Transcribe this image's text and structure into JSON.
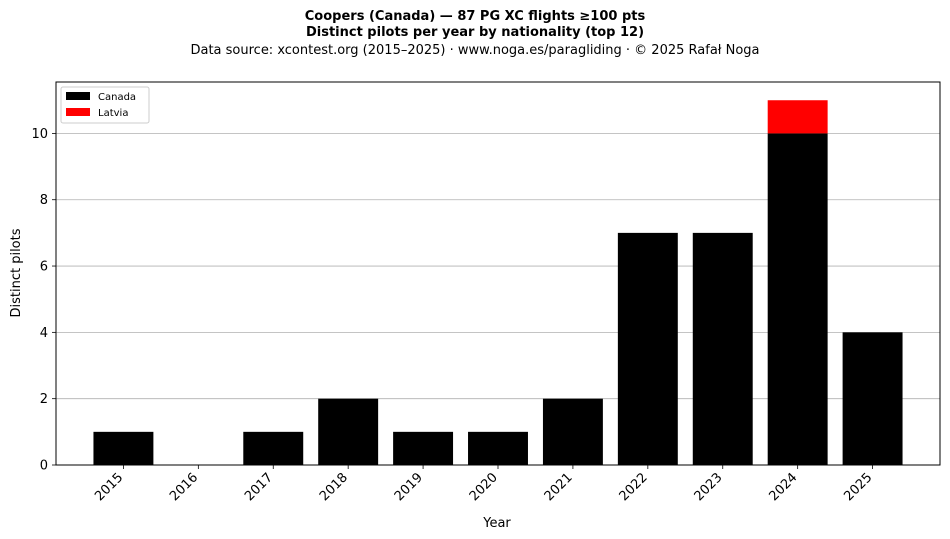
{
  "chart_data": {
    "type": "bar",
    "stacked": true,
    "title": "Coopers (Canada)  —  87 PG XC flights ≥100 pts",
    "subtitle": "Distinct pilots per year by nationality (top 12)",
    "source_line": "Data source: xcontest.org (2015–2025)  ·  www.noga.es/paragliding  ·  © 2025 Rafał Noga",
    "xlabel": "Year",
    "ylabel": "Distinct pilots",
    "categories": [
      "2015",
      "2016",
      "2017",
      "2018",
      "2019",
      "2020",
      "2021",
      "2022",
      "2023",
      "2024",
      "2025"
    ],
    "series": [
      {
        "name": "Canada",
        "color": "#000000",
        "values": [
          1,
          0,
          1,
          2,
          1,
          1,
          2,
          7,
          7,
          10,
          4
        ]
      },
      {
        "name": "Latvia",
        "color": "#ff0000",
        "values": [
          0,
          0,
          0,
          0,
          0,
          0,
          0,
          0,
          0,
          1,
          0
        ]
      }
    ],
    "ylim": [
      0,
      11.55
    ],
    "yticks": [
      0,
      2,
      4,
      6,
      8,
      10
    ],
    "grid": "y",
    "legend_position": "top-left"
  }
}
